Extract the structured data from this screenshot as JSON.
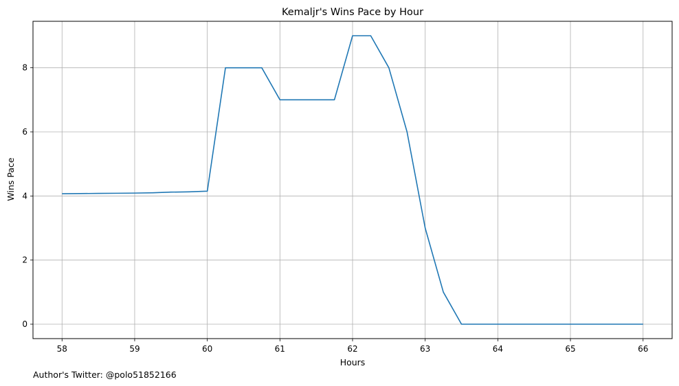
{
  "chart_data": {
    "type": "line",
    "title": "Kemaljr's Wins Pace by Hour",
    "xlabel": "Hours",
    "ylabel": "Wins Pace",
    "xlim": [
      57.6,
      66.4
    ],
    "ylim": [
      -0.45,
      9.45
    ],
    "x_ticks": [
      "58",
      "59",
      "60",
      "61",
      "62",
      "63",
      "64",
      "65",
      "66"
    ],
    "y_ticks": [
      "0",
      "2",
      "4",
      "6",
      "8"
    ],
    "grid": true,
    "line_color": "#1f77b4",
    "series": [
      {
        "x": [
          58,
          58.25,
          58.5,
          58.75,
          59,
          59.25,
          59.5,
          59.75,
          60,
          60.25,
          60.5,
          60.75,
          61,
          61.25,
          61.5,
          61.75,
          62,
          62.25,
          62.5,
          62.75,
          63,
          63.25,
          63.5,
          63.75,
          64,
          64.25,
          64.5,
          64.75,
          65,
          65.25,
          65.5,
          65.75,
          66
        ],
        "y": [
          4.07,
          4.075,
          4.08,
          4.085,
          4.09,
          4.1,
          4.12,
          4.13,
          4.15,
          8,
          8,
          8,
          7,
          7,
          7,
          7,
          9,
          9,
          8,
          6,
          3,
          1,
          0,
          0,
          0,
          0,
          0,
          0,
          0,
          0,
          0,
          0,
          0
        ]
      }
    ]
  },
  "footer": {
    "credit": "Author's Twitter: @polo51852166"
  }
}
